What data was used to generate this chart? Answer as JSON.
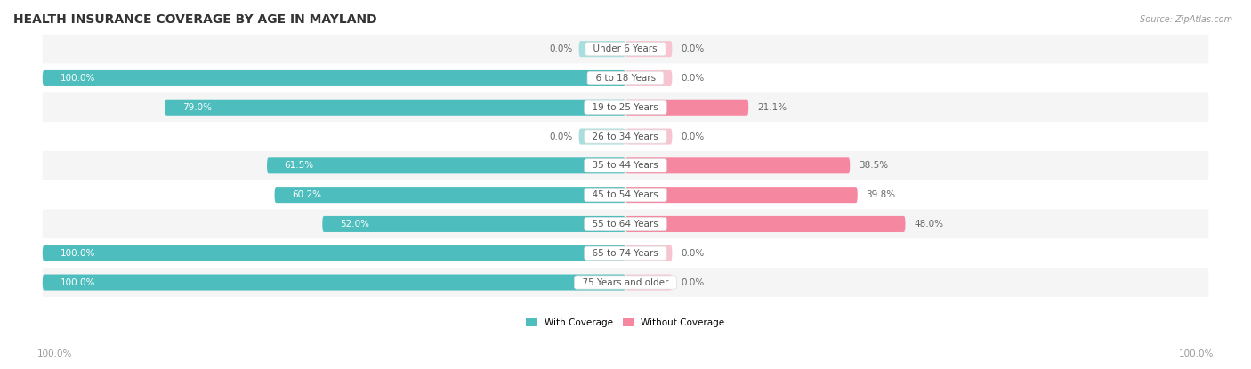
{
  "title": "HEALTH INSURANCE COVERAGE BY AGE IN MAYLAND",
  "source": "Source: ZipAtlas.com",
  "categories": [
    "Under 6 Years",
    "6 to 18 Years",
    "19 to 25 Years",
    "26 to 34 Years",
    "35 to 44 Years",
    "45 to 54 Years",
    "55 to 64 Years",
    "65 to 74 Years",
    "75 Years and older"
  ],
  "with_coverage": [
    0.0,
    100.0,
    79.0,
    0.0,
    61.5,
    60.2,
    52.0,
    100.0,
    100.0
  ],
  "without_coverage": [
    0.0,
    0.0,
    21.1,
    0.0,
    38.5,
    39.8,
    48.0,
    0.0,
    0.0
  ],
  "color_with": "#4dbdbd",
  "color_without": "#f587a0",
  "color_with_zero": "#a8dede",
  "color_without_zero": "#f8c4d0",
  "row_color_odd": "#f5f5f5",
  "row_color_even": "#ffffff",
  "title_color": "#333333",
  "source_color": "#999999",
  "label_color_inside": "#ffffff",
  "label_color_outside": "#666666",
  "cat_label_color": "#555555",
  "tick_label_color": "#999999",
  "title_fontsize": 10,
  "bar_label_fontsize": 7.5,
  "cat_label_fontsize": 7.5,
  "tick_fontsize": 7.5,
  "source_fontsize": 7,
  "max_val": 100.0,
  "zero_bar_width": 8.0,
  "legend_with": "With Coverage",
  "legend_without": "Without Coverage"
}
